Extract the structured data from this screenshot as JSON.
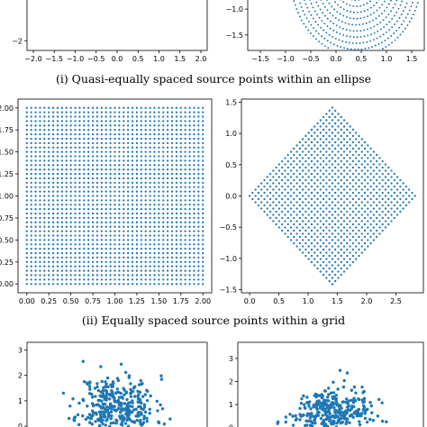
{
  "captions": {
    "i": "(i) Quasi-equally spaced source points within an ellipse",
    "ii": "(ii) Equally spaced source points within a grid"
  },
  "colors": {
    "point": "#1f77b4",
    "axis": "#000000",
    "background": "#ffffff"
  },
  "chart_data": [
    {
      "id": "top-left",
      "type": "scatter",
      "title": "",
      "xlabel": "",
      "ylabel": "",
      "xlim": [
        -2.15,
        2.15
      ],
      "xticks": [
        "−2.0",
        "−1.5",
        "−1.0",
        "−0.5",
        "0.0",
        "0.5",
        "1.0",
        "1.5",
        "2.0"
      ],
      "xtick_values": [
        -2.0,
        -1.5,
        -1.0,
        -0.5,
        0.0,
        0.5,
        1.0,
        1.5,
        2.0
      ],
      "yticks": [
        "−2"
      ],
      "ytick_values": [
        -2
      ],
      "points": "none visible (panel cropped at top)"
    },
    {
      "id": "top-right",
      "type": "scatter",
      "title": "",
      "xlabel": "",
      "ylabel": "",
      "xlim": [
        -1.75,
        1.75
      ],
      "xticks": [
        "−1.5",
        "−1.0",
        "−0.5",
        "0.0",
        "0.5",
        "1.0",
        "1.5"
      ],
      "xtick_values": [
        -1.5,
        -1.0,
        -0.5,
        0.0,
        0.5,
        1.0,
        1.5
      ],
      "yticks": [
        "−1.0",
        "−1.5"
      ],
      "ytick_values": [
        -1.0,
        -1.5
      ],
      "points": "quasi-equally spaced points on concentric ellipses (lower part of ellipse visible)",
      "ellipse": {
        "cx": 0.4,
        "cy": -0.35,
        "a": 1.3,
        "b": 1.55,
        "rings": 13
      }
    },
    {
      "id": "middle-left",
      "type": "scatter",
      "title": "",
      "xlabel": "",
      "ylabel": "",
      "xlim": [
        -0.1,
        2.1
      ],
      "ylim": [
        -0.1,
        2.1
      ],
      "xticks": [
        "0.00",
        "0.25",
        "0.50",
        "0.75",
        "1.00",
        "1.25",
        "1.50",
        "1.75",
        "2.00"
      ],
      "xtick_values": [
        0.0,
        0.25,
        0.5,
        0.75,
        1.0,
        1.25,
        1.5,
        1.75,
        2.0
      ],
      "yticks": [
        "2.00",
        "1.75",
        "1.50",
        "1.25",
        "1.00",
        "0.75",
        "0.50",
        "0.25",
        "0.00"
      ],
      "ytick_values": [
        2.0,
        1.75,
        1.5,
        1.25,
        1.0,
        0.75,
        0.5,
        0.25,
        0.0
      ],
      "grid": {
        "x_from": 0.0,
        "x_to": 2.0,
        "y_from": 0.0,
        "y_to": 2.0,
        "n": 41
      }
    },
    {
      "id": "middle-right",
      "type": "scatter",
      "title": "",
      "xlabel": "",
      "ylabel": "",
      "xlim": [
        -0.14,
        2.97
      ],
      "ylim": [
        -1.55,
        1.55
      ],
      "xticks": [
        "0.0",
        "0.5",
        "1.0",
        "1.5",
        "2.0",
        "2.5"
      ],
      "xtick_values": [
        0.0,
        0.5,
        1.0,
        1.5,
        2.0,
        2.5
      ],
      "yticks": [
        "1.5",
        "1.0",
        "0.5",
        "0.0",
        "−0.5",
        "−1.0",
        "−1.5"
      ],
      "ytick_values": [
        1.5,
        1.0,
        0.5,
        0.0,
        -0.5,
        -1.0,
        -1.5
      ],
      "rotated_grid": {
        "center": [
          1.414,
          0.0
        ],
        "half_diagonal": 1.414,
        "n": 29
      }
    },
    {
      "id": "bottom-left",
      "type": "scatter",
      "title": "",
      "xlabel": "",
      "ylabel": "",
      "ylim": [
        -0.6,
        3.3
      ],
      "yticks": [
        "3",
        "2",
        "1",
        "0"
      ],
      "ytick_values": [
        3,
        2,
        1,
        0
      ],
      "random_cloud": {
        "cx": 0.0,
        "cy": 0.75,
        "sx": 0.55,
        "sy": 0.62,
        "n": 360,
        "seed": 11
      }
    },
    {
      "id": "bottom-right",
      "type": "scatter",
      "title": "",
      "xlabel": "",
      "ylabel": "",
      "ylim": [
        -0.6,
        3.7
      ],
      "yticks": [
        "3",
        "2",
        "1",
        "0"
      ],
      "ytick_values": [
        3,
        2,
        1,
        0
      ],
      "random_cloud": {
        "cx": 0.0,
        "cy": 0.6,
        "sx": 0.55,
        "sy": 0.55,
        "n": 360,
        "seed": 29
      }
    }
  ]
}
